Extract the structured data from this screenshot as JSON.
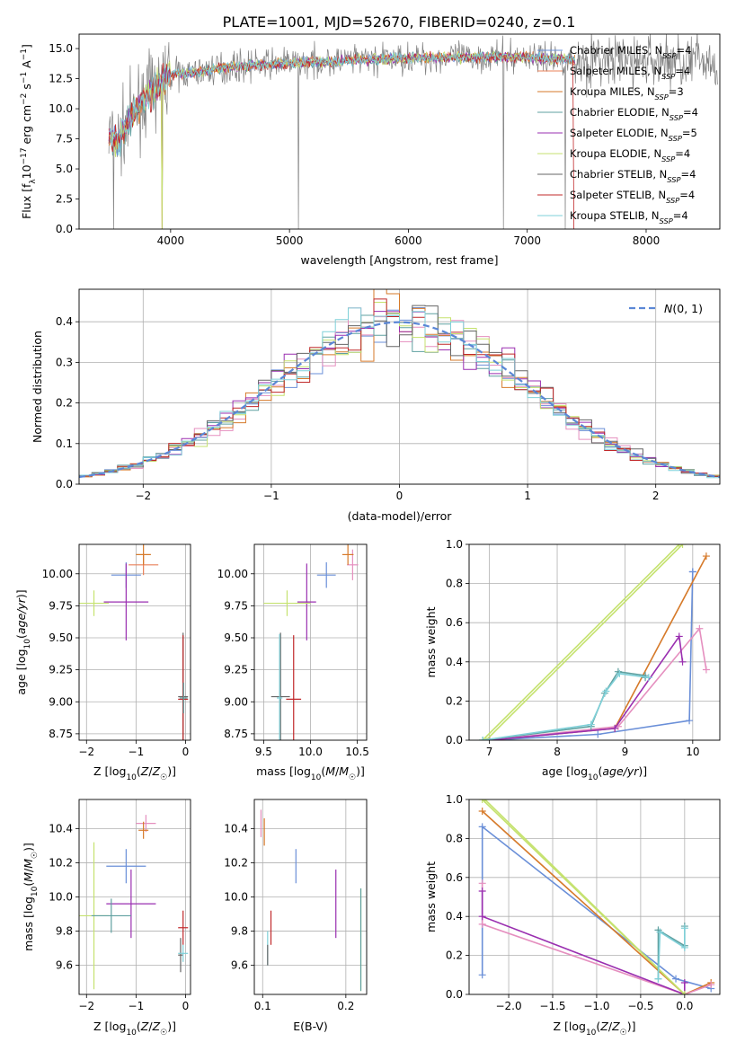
{
  "figure_title": "PLATE=1001, MJD=52670, FIBERID=0240, z=0.1",
  "colors": {
    "Chabrier MILES": "#6a8fd8",
    "Salpeter MILES": "#e8815a",
    "Kroupa MILES": "#d67a2a",
    "Chabrier ELODIE": "#5fa0a0",
    "Salpeter ELODIE": "#9a2fb0",
    "Kroupa ELODIE": "#c5e26f",
    "Chabrier STELIB": "#666666",
    "Salpeter STELIB": "#c0282a",
    "Kroupa STELIB": "#7fd0d8",
    "normal": "#5b87d6",
    "pink": "#e58fbf"
  },
  "chart_data": [
    {
      "id": "spectrum",
      "type": "line",
      "title": "PLATE=1001, MJD=52670, FIBERID=0240, z=0.1",
      "xlabel": "wavelength [Angstrom, rest frame]",
      "ylabel": "Flux [f_λ 10^-17 erg cm^-2 s^-1 A^-1]",
      "xlim": [
        3230,
        8620
      ],
      "ylim": [
        0,
        16.2
      ],
      "xticks": [
        4000,
        5000,
        6000,
        7000,
        8000
      ],
      "yticks": [
        0.0,
        2.5,
        5.0,
        7.5,
        10.0,
        12.5,
        15.0
      ],
      "grid": false,
      "legend_position": "right",
      "legend": [
        {
          "label": "Chabrier MILES, N_SSP=4",
          "color": "#6a8fd8"
        },
        {
          "label": "Salpeter MILES, N_SSP=4",
          "color": "#e8815a"
        },
        {
          "label": "Kroupa MILES, N_SSP=3",
          "color": "#d67a2a"
        },
        {
          "label": "Chabrier ELODIE, N_SSP=4",
          "color": "#5fa0a0"
        },
        {
          "label": "Salpeter ELODIE, N_SSP=5",
          "color": "#9a2fb0"
        },
        {
          "label": "Kroupa ELODIE, N_SSP=4",
          "color": "#c5e26f"
        },
        {
          "label": "Chabrier STELIB, N_SSP=4",
          "color": "#666666"
        },
        {
          "label": "Salpeter STELIB, N_SSP=4",
          "color": "#c0282a"
        },
        {
          "label": "Kroupa STELIB, N_SSP=4",
          "color": "#7fd0d8"
        }
      ],
      "continuum": [
        [
          3480,
          7.8
        ],
        [
          3560,
          7.3
        ],
        [
          3650,
          9.0
        ],
        [
          3750,
          10.5
        ],
        [
          3900,
          12.0
        ],
        [
          4000,
          12.9
        ],
        [
          4200,
          13.0
        ],
        [
          4500,
          13.5
        ],
        [
          5000,
          13.8
        ],
        [
          5500,
          14.0
        ],
        [
          6000,
          14.2
        ],
        [
          6500,
          14.3
        ],
        [
          7000,
          14.3
        ],
        [
          7300,
          14.1
        ],
        [
          7400,
          14.0
        ]
      ],
      "data_range": [
        3480,
        8600
      ],
      "model_range": [
        3480,
        7400
      ],
      "spikes_down": [
        [
          3520,
          0
        ],
        [
          3930,
          0
        ],
        [
          5075,
          0
        ],
        [
          6800,
          0
        ],
        [
          7320,
          0
        ]
      ]
    },
    {
      "id": "residuals",
      "type": "step",
      "xlabel": "(data-model)/error",
      "ylabel": "Normed distribution",
      "xlim": [
        -2.5,
        2.5
      ],
      "ylim": [
        0,
        0.48
      ],
      "xticks": [
        -2,
        -1,
        0,
        1,
        2
      ],
      "yticks": [
        0.0,
        0.1,
        0.2,
        0.3,
        0.4
      ],
      "grid": true,
      "legend": [
        {
          "label": "N(0,1)",
          "style": "dashed",
          "color": "#5b87d6"
        }
      ],
      "bin_width": 0.1
    },
    {
      "id": "age_vs_Z",
      "type": "errorbar",
      "xlabel": "Z [log10(Z/Z☉)]",
      "ylabel": "age [log10(age/yr)]",
      "xlim": [
        -2.15,
        0.1
      ],
      "ylim": [
        8.7,
        10.23
      ],
      "xticks": [
        -2,
        -1,
        0
      ],
      "yticks": [
        8.75,
        9.0,
        9.25,
        9.5,
        9.75,
        10.0
      ],
      "grid": true,
      "points": [
        {
          "series": "Chabrier MILES",
          "x": -1.2,
          "xerr": 0.3,
          "y": 9.99,
          "yerr": 0.1
        },
        {
          "series": "Salpeter MILES",
          "x": -0.85,
          "xerr": 0.3,
          "y": 10.07,
          "yerr": 0.08
        },
        {
          "series": "Kroupa MILES",
          "x": -0.85,
          "xerr": 0.15,
          "y": 10.15,
          "yerr": 0.08
        },
        {
          "series": "Salpeter ELODIE",
          "x": -1.2,
          "xerr": 0.45,
          "y": 9.78,
          "yerr": 0.3
        },
        {
          "series": "Kroupa ELODIE",
          "x": -1.85,
          "xerr": 0.3,
          "y": 9.77,
          "yerr": 0.1
        },
        {
          "series": "Chabrier STELIB",
          "x": -0.05,
          "xerr": 0.1,
          "y": 9.04,
          "yerr": 0.5
        },
        {
          "series": "Salpeter STELIB",
          "x": -0.05,
          "xerr": 0.1,
          "y": 9.02,
          "yerr": 0.5
        },
        {
          "series": "Chabrier ELODIE",
          "x": -0.04,
          "xerr": 0.08,
          "y": 9.03,
          "yerr": 0.12
        }
      ]
    },
    {
      "id": "age_vs_mass",
      "type": "errorbar",
      "xlabel": "mass [log10(M/M☉)]",
      "ylabel": "",
      "xlim": [
        9.4,
        10.6
      ],
      "ylim": [
        8.7,
        10.23
      ],
      "xticks": [
        9.5,
        10.0,
        10.5
      ],
      "yticks": [
        8.75,
        9.0,
        9.25,
        9.5,
        9.75,
        10.0
      ],
      "grid": true,
      "points": [
        {
          "series": "Chabrier MILES",
          "x": 10.17,
          "xerr": 0.1,
          "y": 9.99,
          "yerr": 0.1
        },
        {
          "series": "pink",
          "x": 10.45,
          "xerr": 0.06,
          "y": 10.07,
          "yerr": 0.12
        },
        {
          "series": "Kroupa MILES",
          "x": 10.4,
          "xerr": 0.06,
          "y": 10.15,
          "yerr": 0.08
        },
        {
          "series": "Salpeter ELODIE",
          "x": 9.96,
          "xerr": 0.1,
          "y": 9.78,
          "yerr": 0.3
        },
        {
          "series": "Kroupa ELODIE",
          "x": 9.75,
          "xerr": 0.25,
          "y": 9.77,
          "yerr": 0.1
        },
        {
          "series": "Chabrier STELIB",
          "x": 9.68,
          "xerr": 0.1,
          "y": 9.04,
          "yerr": 0.5
        },
        {
          "series": "Salpeter STELIB",
          "x": 9.82,
          "xerr": 0.08,
          "y": 9.02,
          "yerr": 0.5
        },
        {
          "series": "Kroupa STELIB",
          "x": 9.67,
          "xerr": 0.03,
          "y": 9.03,
          "yerr": 0.5
        }
      ]
    },
    {
      "id": "weight_vs_age",
      "type": "line",
      "xlabel": "age [log10(age/yr)]",
      "ylabel": "mass weight",
      "xlim": [
        6.7,
        10.4
      ],
      "ylim": [
        0,
        1.0
      ],
      "xticks": [
        7,
        8,
        9,
        10
      ],
      "yticks": [
        0.0,
        0.2,
        0.4,
        0.6,
        0.8,
        1.0
      ],
      "grid": true,
      "series": [
        {
          "name": "Chabrier MILES",
          "x": [
            7.0,
            8.6,
            9.95,
            10.0,
            10.0
          ],
          "y": [
            0.0,
            0.03,
            0.1,
            0.86,
            0.86
          ]
        },
        {
          "name": "Kroupa MILES",
          "x": [
            7.0,
            8.85,
            10.2
          ],
          "y": [
            0.0,
            0.06,
            0.94
          ]
        },
        {
          "name": "pink",
          "x": [
            7.0,
            8.9,
            10.1,
            10.2
          ],
          "y": [
            0.0,
            0.07,
            0.57,
            0.36
          ]
        },
        {
          "name": "Salpeter ELODIE",
          "x": [
            7.0,
            8.85,
            9.8,
            9.85
          ],
          "y": [
            0.0,
            0.06,
            0.53,
            0.4
          ]
        },
        {
          "name": "Kroupa ELODIE",
          "x": [
            6.9,
            9.8
          ],
          "y": [
            0.0,
            1.0
          ]
        },
        {
          "name": "Kroupa ELODIE",
          "x": [
            6.95,
            9.85
          ],
          "y": [
            0.0,
            1.0
          ]
        },
        {
          "name": "Chabrier ELODIE",
          "x": [
            6.9,
            8.5,
            8.7,
            8.9,
            9.3,
            9.3
          ],
          "y": [
            0.0,
            0.07,
            0.24,
            0.35,
            0.33,
            0.32
          ]
        },
        {
          "name": "Kroupa STELIB",
          "x": [
            6.9,
            8.5,
            8.72,
            8.92,
            9.35
          ],
          "y": [
            0.0,
            0.08,
            0.25,
            0.34,
            0.32
          ]
        }
      ]
    },
    {
      "id": "mass_vs_Z",
      "type": "errorbar",
      "xlabel": "Z [log10(Z/Z☉)]",
      "ylabel": "mass [log10(M/M☉)]",
      "xlim": [
        -2.15,
        0.1
      ],
      "ylim": [
        9.43,
        10.57
      ],
      "xticks": [
        -2,
        -1,
        0
      ],
      "yticks": [
        9.6,
        9.8,
        10.0,
        10.2,
        10.4
      ],
      "grid": true,
      "points": [
        {
          "series": "Chabrier MILES",
          "x": -1.2,
          "xerr": 0.4,
          "y": 10.18,
          "yerr": 0.1
        },
        {
          "series": "pink",
          "x": -0.8,
          "xerr": 0.2,
          "y": 10.43,
          "yerr": 0.05
        },
        {
          "series": "Kroupa MILES",
          "x": -0.85,
          "xerr": 0.1,
          "y": 10.39,
          "yerr": 0.05
        },
        {
          "series": "Salpeter ELODIE",
          "x": -1.1,
          "xerr": 0.5,
          "y": 9.96,
          "yerr": 0.2
        },
        {
          "series": "Kroupa ELODIE",
          "x": -1.85,
          "xerr": 0.3,
          "y": 9.89,
          "yerr": 0.43
        },
        {
          "series": "Chabrier ELODIE",
          "x": -1.5,
          "xerr": 0.4,
          "y": 9.89,
          "yerr": 0.1
        },
        {
          "series": "Salpeter STELIB",
          "x": -0.05,
          "xerr": 0.1,
          "y": 9.82,
          "yerr": 0.1
        },
        {
          "series": "Chabrier STELIB",
          "x": -0.1,
          "xerr": 0.05,
          "y": 9.66,
          "yerr": 0.1
        },
        {
          "series": "Kroupa STELIB",
          "x": -0.05,
          "xerr": 0.1,
          "y": 9.67,
          "yerr": 0.05
        }
      ]
    },
    {
      "id": "mass_vs_EBV",
      "type": "errorbar",
      "xlabel": "E(B-V)",
      "ylabel": "",
      "xlim": [
        0.09,
        0.225
      ],
      "ylim": [
        9.43,
        10.57
      ],
      "xticks": [
        0.1,
        0.2
      ],
      "yticks": [
        9.6,
        9.8,
        10.0,
        10.2,
        10.4
      ],
      "grid": true,
      "points": [
        {
          "series": "pink",
          "x": 0.098,
          "y": 10.43,
          "yerr": 0.08
        },
        {
          "series": "Kroupa MILES",
          "x": 0.102,
          "y": 10.38,
          "yerr": 0.08
        },
        {
          "series": "Chabrier MILES",
          "x": 0.14,
          "y": 10.18,
          "yerr": 0.1
        },
        {
          "series": "Salpeter ELODIE",
          "x": 0.188,
          "y": 9.96,
          "yerr": 0.2
        },
        {
          "series": "Kroupa ELODIE",
          "x": 0.218,
          "y": 9.75,
          "yerr": 0.3
        },
        {
          "series": "Chabrier ELODIE",
          "x": 0.218,
          "y": 9.75,
          "yerr": 0.3
        },
        {
          "series": "Salpeter STELIB",
          "x": 0.11,
          "y": 9.82,
          "yerr": 0.1
        },
        {
          "series": "Kroupa STELIB",
          "x": 0.106,
          "y": 9.7,
          "yerr": 0.1
        },
        {
          "series": "Chabrier STELIB",
          "x": 0.106,
          "y": 9.66,
          "yerr": 0.06
        }
      ]
    },
    {
      "id": "weight_vs_Z",
      "type": "line",
      "xlabel": "Z [log10(Z/Z☉)]",
      "ylabel": "mass weight",
      "xlim": [
        -2.45,
        0.4
      ],
      "ylim": [
        0,
        1.0
      ],
      "xticks": [
        -2.0,
        -1.5,
        -1.0,
        -0.5,
        0.0
      ],
      "yticks": [
        0.0,
        0.2,
        0.4,
        0.6,
        0.8,
        1.0
      ],
      "grid": true,
      "series": [
        {
          "name": "Chabrier MILES",
          "x": [
            -2.3,
            -2.3,
            -0.1,
            0.3
          ],
          "y": [
            0.1,
            0.86,
            0.08,
            0.03
          ]
        },
        {
          "name": "Kroupa MILES",
          "x": [
            -2.3,
            0.0,
            0.3
          ],
          "y": [
            0.94,
            0.0,
            0.06
          ]
        },
        {
          "name": "pink",
          "x": [
            -2.3,
            -2.3,
            0.0,
            0.3
          ],
          "y": [
            0.57,
            0.36,
            0.0,
            0.05
          ]
        },
        {
          "name": "Salpeter ELODIE",
          "x": [
            -2.3,
            -2.3,
            0.0,
            0.0
          ],
          "y": [
            0.53,
            0.4,
            0.0,
            0.06
          ]
        },
        {
          "name": "Kroupa ELODIE",
          "x": [
            -2.3,
            0.0
          ],
          "y": [
            1.0,
            0.0
          ]
        },
        {
          "name": "Kroupa ELODIE",
          "x": [
            -2.27,
            0.0
          ],
          "y": [
            1.0,
            0.0
          ]
        },
        {
          "name": "Chabrier ELODIE",
          "x": [
            -0.3,
            -0.3,
            0.0,
            0.0
          ],
          "y": [
            0.08,
            0.33,
            0.25,
            0.35
          ]
        },
        {
          "name": "Kroupa STELIB",
          "x": [
            -0.3,
            -0.28,
            0.0,
            0.0
          ],
          "y": [
            0.08,
            0.32,
            0.24,
            0.34
          ]
        }
      ]
    }
  ]
}
